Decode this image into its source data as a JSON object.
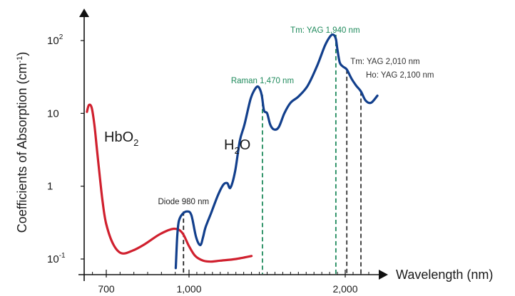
{
  "chart_data": {
    "type": "line",
    "xlabel": "Wavelength (nm)",
    "ylabel": "Coefficients of Absorption (cm",
    "ylabel_sup": "-1",
    "ylabel_close": ")",
    "y_scale": "log",
    "xlim": [
      620,
      2200
    ],
    "ylim": [
      0.08,
      180
    ],
    "x_ticks": [
      {
        "value": 700,
        "label": "700"
      },
      {
        "value": 1000,
        "label": "1,000"
      },
      {
        "value": 2000,
        "label": "2,000"
      }
    ],
    "x_minor_ticks": [
      650,
      750,
      800,
      850,
      900,
      950,
      1050,
      1100,
      1150,
      1200,
      1250,
      1300,
      1350,
      1400,
      1450,
      1500,
      1550,
      1600,
      1650,
      1700,
      1750,
      1800,
      1850,
      1900,
      1950,
      2050,
      2100,
      2150
    ],
    "y_ticks": [
      {
        "value": 0.1,
        "base": "10",
        "sup": "-1"
      },
      {
        "value": 1,
        "base": "1",
        "sup": ""
      },
      {
        "value": 10,
        "base": "10",
        "sup": ""
      },
      {
        "value": 100,
        "base": "10",
        "sup": "2"
      }
    ],
    "grid": false,
    "series": [
      {
        "name_base": "HbO",
        "name_sub": "2",
        "color": "#d0202e",
        "x": [
          630,
          637,
          647,
          657,
          667,
          677,
          687,
          700,
          725,
          755,
          795,
          840,
          895,
          945,
          975,
          1000,
          1040,
          1090,
          1140,
          1200,
          1300,
          1400
        ],
        "y": [
          10.5,
          13.0,
          12.0,
          7.0,
          3.0,
          1.3,
          0.6,
          0.3,
          0.16,
          0.12,
          0.13,
          0.16,
          0.22,
          0.26,
          0.23,
          0.15,
          0.11,
          0.095,
          0.092,
          0.095,
          0.1,
          0.11
        ]
      },
      {
        "name_base": "H",
        "name_sub": "2",
        "name_end": "O",
        "color": "#123f8c",
        "x": [
          952,
          957,
          963,
          975,
          993,
          1015,
          1045,
          1072,
          1090,
          1105,
          1140,
          1185,
          1220,
          1245,
          1265,
          1295,
          1325,
          1355,
          1395,
          1425,
          1445,
          1465,
          1480,
          1500,
          1520,
          1545,
          1575,
          1610,
          1650,
          1700,
          1760,
          1820,
          1870,
          1905,
          1925,
          1940,
          1950,
          1965,
          1985,
          2010,
          2040,
          2070,
          2100,
          2130,
          2165,
          2205
        ],
        "y": [
          0.075,
          0.2,
          0.33,
          0.41,
          0.45,
          0.4,
          0.2,
          0.155,
          0.2,
          0.27,
          0.42,
          0.75,
          1.05,
          1.1,
          0.95,
          1.6,
          4.2,
          7.0,
          16.0,
          22.0,
          23.0,
          18.0,
          11.0,
          10.0,
          7.0,
          6.0,
          6.5,
          10.0,
          14.0,
          17.0,
          24.0,
          45.0,
          85.0,
          115.0,
          120.0,
          105.0,
          75.0,
          50.0,
          44.0,
          40.0,
          30.0,
          24.0,
          20.0,
          15.0,
          14.0,
          17.5
        ]
      }
    ],
    "annotations": [
      {
        "label": "Diode 980 nm",
        "x": 980,
        "y": 0.45,
        "color": "#222222"
      },
      {
        "label": "Raman 1,470 nm",
        "x": 1470,
        "y": 18.0,
        "color": "#1f8a5c"
      },
      {
        "label": "Tm: YAG 1,940 nm",
        "x": 1940,
        "y": 120.0,
        "color": "#1f8a5c"
      },
      {
        "label": "Tm: YAG 2,010 nm",
        "x": 2010,
        "y": 40.0,
        "color": "#333333"
      },
      {
        "label": "Ho: YAG 2,100 nm",
        "x": 2100,
        "y": 20.0,
        "color": "#333333"
      }
    ]
  }
}
